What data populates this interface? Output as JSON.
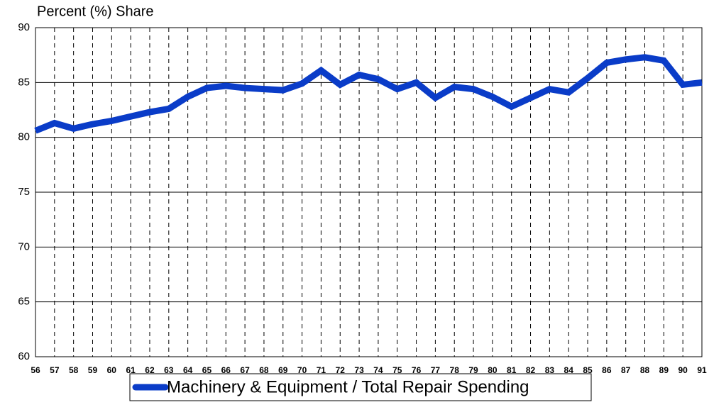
{
  "chart_data": {
    "type": "line",
    "title": "Percent (%) Share",
    "categories": [
      "56",
      "57",
      "58",
      "59",
      "60",
      "61",
      "62",
      "63",
      "64",
      "65",
      "66",
      "67",
      "68",
      "69",
      "70",
      "71",
      "72",
      "73",
      "74",
      "75",
      "76",
      "77",
      "78",
      "79",
      "80",
      "81",
      "82",
      "83",
      "84",
      "85",
      "86",
      "87",
      "88",
      "89",
      "90",
      "91"
    ],
    "series": [
      {
        "name": "Machinery & Equipment / Total Repair Spending",
        "color": "#0a3cc8",
        "values": [
          80.6,
          81.3,
          80.8,
          81.2,
          81.5,
          81.9,
          82.3,
          82.6,
          83.7,
          84.5,
          84.7,
          84.5,
          84.4,
          84.3,
          84.9,
          86.1,
          84.8,
          85.7,
          85.3,
          84.4,
          85.0,
          83.6,
          84.6,
          84.4,
          83.7,
          82.8,
          83.6,
          84.4,
          84.1,
          85.4,
          86.8,
          87.1,
          87.3,
          87.0,
          84.8,
          85.0
        ]
      }
    ],
    "ylim": [
      60,
      90
    ],
    "yticks": [
      60,
      65,
      70,
      75,
      80,
      85,
      90
    ],
    "grid": true,
    "legend": "bottom"
  }
}
